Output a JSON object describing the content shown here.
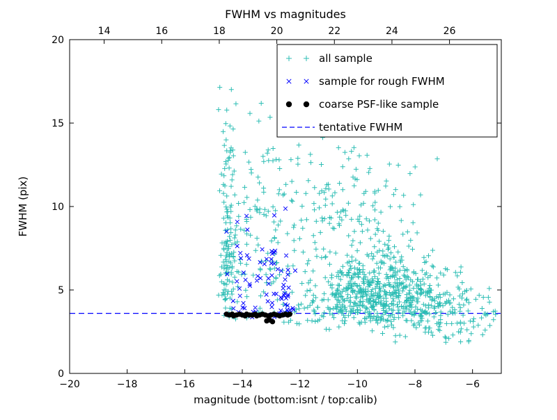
{
  "chart_data": {
    "type": "scatter",
    "title": "FWHM vs magnitudes",
    "xlabel": "magnitude (bottom:isnt / top:calib)",
    "ylabel": "FWHM (pix)",
    "xlim": [
      -20,
      -5
    ],
    "ylim": [
      0,
      20
    ],
    "grid": false,
    "legend_position": "upper right",
    "seed": 7,
    "bottom_axis": {
      "ticks": [
        -20,
        -18,
        -16,
        -14,
        -12,
        -10,
        -8,
        -6
      ],
      "labels": [
        "−20",
        "−18",
        "−16",
        "−14",
        "−12",
        "−10",
        "−8",
        "−6"
      ]
    },
    "top_axis": {
      "offset": 32.8,
      "ticks": [
        14,
        16,
        18,
        20,
        22,
        24,
        26
      ],
      "labels": [
        "14",
        "16",
        "18",
        "20",
        "22",
        "24",
        "26"
      ]
    },
    "left_axis": {
      "ticks": [
        0,
        5,
        10,
        15,
        20
      ],
      "labels": [
        "0",
        "5",
        "10",
        "15",
        "20"
      ]
    },
    "tentative_fwhm": 3.6,
    "series": [
      {
        "name": "all sample",
        "marker": "plus",
        "color": "#2cbdb4",
        "clusters": [
          {
            "n": 140,
            "x": {
              "type": "gauss",
              "mu": -14.5,
              "sigma": 0.13,
              "min": -14.9,
              "max": -14.1
            },
            "y": {
              "type": "gauss",
              "mu": 7.5,
              "sigma": 4.5,
              "min": 3.3,
              "max": 19.6
            }
          },
          {
            "n": 150,
            "x": {
              "type": "gauss",
              "mu": -13.1,
              "sigma": 0.85,
              "min": -14.4,
              "max": -11.2
            },
            "y": {
              "type": "gauss",
              "mu": 8.5,
              "sigma": 3.8,
              "min": 3.2,
              "max": 19.3
            }
          },
          {
            "n": 540,
            "x": {
              "type": "gauss",
              "mu": -9.3,
              "sigma": 1.15,
              "min": -11.8,
              "max": -5.3
            },
            "y": {
              "type": "gauss",
              "mu": 4.9,
              "sigma": 1.15,
              "min": 2.2,
              "max": 8.5
            }
          },
          {
            "n": 130,
            "x": {
              "type": "gauss",
              "mu": -9.7,
              "sigma": 1.3,
              "min": -11.8,
              "max": -6.0
            },
            "y": {
              "type": "gauss",
              "mu": 9.5,
              "sigma": 2.3,
              "min": 6.5,
              "max": 15.8
            }
          },
          {
            "n": 120,
            "x": {
              "type": "gauss",
              "mu": -7.0,
              "sigma": 1.0,
              "min": -9.5,
              "max": -5.1
            },
            "y": {
              "type": "gauss",
              "mu": 3.8,
              "sigma": 1.2,
              "min": 1.8,
              "max": 7.5
            }
          },
          {
            "n": 110,
            "x": {
              "type": "uniform",
              "min": -12.6,
              "max": -5.2
            },
            "y": {
              "type": "gauss",
              "mu": 3.7,
              "sigma": 0.45,
              "min": 2.5,
              "max": 5.0
            }
          }
        ]
      },
      {
        "name": "sample for rough FWHM",
        "marker": "cross",
        "color": "#0000ff",
        "clusters": [
          {
            "n": 40,
            "x": {
              "type": "gauss",
              "mu": -12.6,
              "sigma": 0.3,
              "min": -13.3,
              "max": -12.15
            },
            "y": {
              "type": "gauss",
              "mu": 5.3,
              "sigma": 2.0,
              "min": 3.4,
              "max": 11.0
            }
          },
          {
            "n": 28,
            "x": {
              "type": "gauss",
              "mu": -13.7,
              "sigma": 0.5,
              "min": -14.6,
              "max": -12.8
            },
            "y": {
              "type": "gauss",
              "mu": 5.8,
              "sigma": 1.8,
              "min": 3.4,
              "max": 10.5
            }
          },
          {
            "n": 22,
            "x": {
              "type": "uniform",
              "min": -14.55,
              "max": -12.2
            },
            "y": {
              "type": "gauss",
              "mu": 3.65,
              "sigma": 0.2,
              "min": 3.3,
              "max": 4.3
            }
          }
        ]
      },
      {
        "name": "coarse PSF-like sample",
        "marker": "dot",
        "color": "#000000",
        "points": [
          [
            -14.55,
            3.55
          ],
          [
            -14.45,
            3.5
          ],
          [
            -14.35,
            3.55
          ],
          [
            -14.3,
            3.45
          ],
          [
            -14.2,
            3.5
          ],
          [
            -14.1,
            3.55
          ],
          [
            -14.0,
            3.5
          ],
          [
            -13.9,
            3.45
          ],
          [
            -13.85,
            3.55
          ],
          [
            -13.75,
            3.5
          ],
          [
            -13.65,
            3.5
          ],
          [
            -13.55,
            3.55
          ],
          [
            -13.5,
            3.45
          ],
          [
            -13.4,
            3.5
          ],
          [
            -13.3,
            3.55
          ],
          [
            -13.2,
            3.5
          ],
          [
            -13.1,
            3.45
          ],
          [
            -13.0,
            3.5
          ],
          [
            -12.9,
            3.55
          ],
          [
            -12.8,
            3.5
          ],
          [
            -12.7,
            3.45
          ],
          [
            -12.6,
            3.5
          ],
          [
            -12.5,
            3.55
          ],
          [
            -12.42,
            3.5
          ],
          [
            -12.35,
            3.55
          ],
          [
            -13.15,
            3.15
          ],
          [
            -12.95,
            3.1
          ],
          [
            -13.05,
            3.2
          ]
        ]
      },
      {
        "name": "tentative FWHM",
        "marker": "dashed",
        "color": "#0000ff",
        "y": 3.6
      }
    ]
  }
}
